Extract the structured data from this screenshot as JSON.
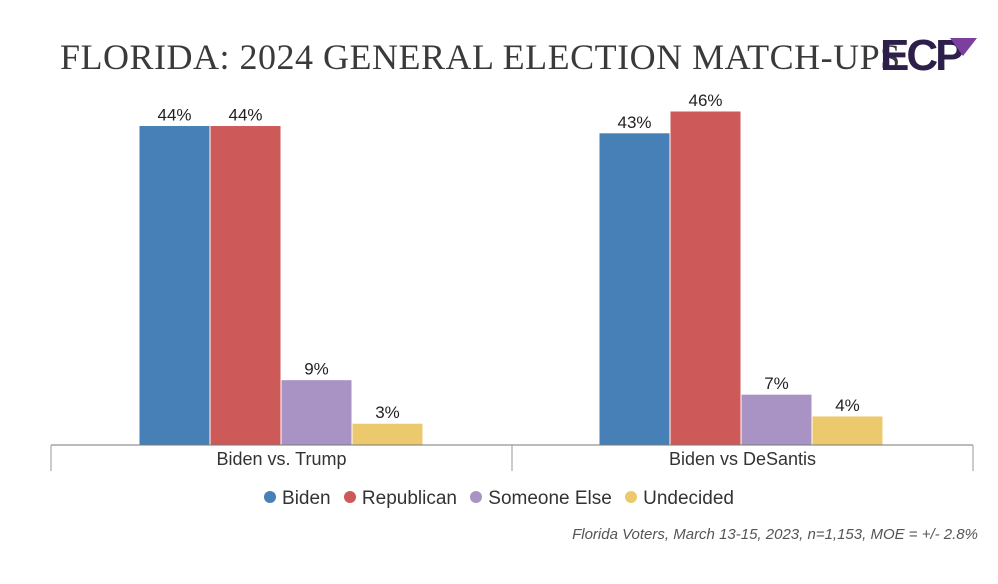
{
  "title": "FLORIDA: 2024 GENERAL ELECTION MATCH-UPS",
  "logo": {
    "text": "ECP",
    "colors": {
      "letters": "#2e1e4a",
      "check": "#7b3fa0"
    }
  },
  "chart_data": {
    "type": "bar",
    "categories": [
      "Biden vs. Trump",
      "Biden vs DeSantis"
    ],
    "series": [
      {
        "name": "Biden",
        "color": "#4680b6",
        "values": [
          44,
          43
        ],
        "labels": [
          "44%",
          "43%"
        ]
      },
      {
        "name": "Republican",
        "color": "#cd5a58",
        "values": [
          44,
          46
        ],
        "labels": [
          "44%",
          "46%"
        ]
      },
      {
        "name": "Someone Else",
        "color": "#a993c5",
        "values": [
          9,
          7
        ],
        "labels": [
          "9%",
          "7%"
        ]
      },
      {
        "name": "Undecided",
        "color": "#ecc96c",
        "values": [
          3,
          4
        ],
        "labels": [
          "3%",
          "4%"
        ]
      }
    ],
    "ylim": [
      0,
      46
    ],
    "grid": false,
    "legend_position": "bottom"
  },
  "footnote": "Florida Voters, March 13-15, 2023, n=1,153, MOE = +/- 2.8%"
}
